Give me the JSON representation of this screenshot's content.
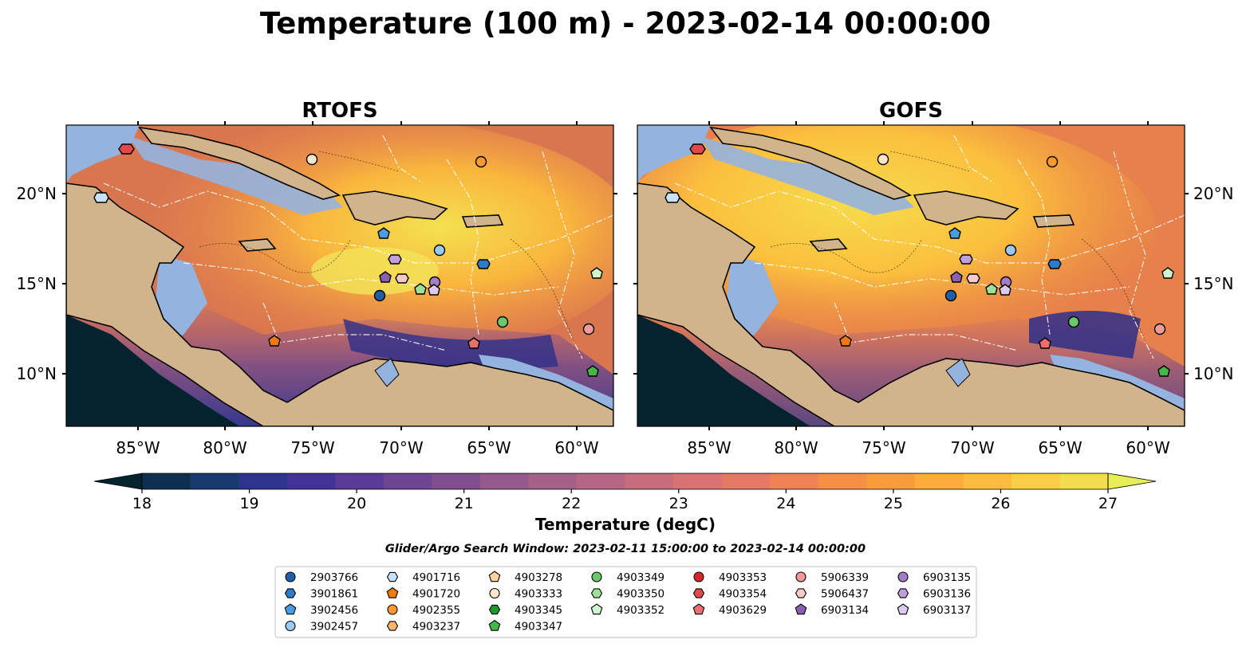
{
  "title": "Temperature (100 m) - 2023-02-14 00:00:00",
  "panels": [
    {
      "title": "RTOFS",
      "x_ticks": [
        "85°W",
        "80°W",
        "75°W",
        "70°W",
        "65°W",
        "60°W"
      ],
      "y_ticks": [
        "20°N",
        "15°N",
        "10°N"
      ]
    },
    {
      "title": "GOFS",
      "x_ticks": [
        "85°W",
        "80°W",
        "75°W",
        "70°W",
        "65°W",
        "60°W"
      ],
      "y_ticks": [
        "20°N",
        "15°N",
        "10°N"
      ]
    }
  ],
  "colorbar": {
    "label": "Temperature (degC)",
    "ticks": [
      "18",
      "19",
      "20",
      "21",
      "22",
      "23",
      "24",
      "25",
      "26",
      "27"
    ],
    "colors": [
      "#04232e",
      "#0d3050",
      "#193a6e",
      "#2c3490",
      "#423399",
      "#5a3b98",
      "#6e4592",
      "#824f8e",
      "#95598b",
      "#a56088",
      "#b66784",
      "#c76d7e",
      "#d87273",
      "#e57965",
      "#ef8355",
      "#f58f46",
      "#f99c3b",
      "#fbac3a",
      "#fbbc3e",
      "#f9cd45",
      "#f2dd4f",
      "#e8ef56"
    ]
  },
  "search_window": "Glider/Argo Search Window: 2023-02-11 15:00:00 to 2023-02-14 00:00:00",
  "legend": {
    "columns": [
      [
        {
          "label": "2903766",
          "shape": "circle",
          "color": "#1f5fa6"
        },
        {
          "label": "3901861",
          "shape": "hexagon",
          "color": "#2b7bc9"
        },
        {
          "label": "3902456",
          "shape": "pentagon",
          "color": "#4a9ee0"
        },
        {
          "label": "3902457",
          "shape": "circle",
          "color": "#9cc9ef"
        }
      ],
      [
        {
          "label": "4901716",
          "shape": "hexagon",
          "color": "#c8e3f8"
        },
        {
          "label": "4901720",
          "shape": "pentagon",
          "color": "#f07a12"
        },
        {
          "label": "4902355",
          "shape": "circle",
          "color": "#f7992e"
        },
        {
          "label": "4903237",
          "shape": "hexagon",
          "color": "#fbb56a"
        }
      ],
      [
        {
          "label": "4903278",
          "shape": "pentagon",
          "color": "#fdd2a0"
        },
        {
          "label": "4903333",
          "shape": "circle",
          "color": "#fde6cc"
        },
        {
          "label": "4903345",
          "shape": "hexagon",
          "color": "#1e9a2b"
        },
        {
          "label": "4903347",
          "shape": "pentagon",
          "color": "#43b847"
        }
      ],
      [
        {
          "label": "4903349",
          "shape": "circle",
          "color": "#6cc96a"
        },
        {
          "label": "4903350",
          "shape": "hexagon",
          "color": "#9ce09a"
        },
        {
          "label": "4903352",
          "shape": "pentagon",
          "color": "#cff5cd"
        }
      ],
      [
        {
          "label": "4903353",
          "shape": "circle",
          "color": "#d62728"
        },
        {
          "label": "4903354",
          "shape": "hexagon",
          "color": "#e04a4a"
        },
        {
          "label": "4903629",
          "shape": "pentagon",
          "color": "#ec6f6f"
        }
      ],
      [
        {
          "label": "5906339",
          "shape": "circle",
          "color": "#f29a9a"
        },
        {
          "label": "5906437",
          "shape": "hexagon",
          "color": "#f8c9c9"
        },
        {
          "label": "6903134",
          "shape": "pentagon",
          "color": "#8a5fb0"
        }
      ],
      [
        {
          "label": "6903135",
          "shape": "circle",
          "color": "#a47cc8"
        },
        {
          "label": "6903136",
          "shape": "hexagon",
          "color": "#bf9fdc"
        },
        {
          "label": "6903137",
          "shape": "pentagon",
          "color": "#dccaef"
        }
      ]
    ]
  },
  "map_colors": {
    "land": "#d2b48c",
    "shallow": "#95b3df",
    "deep_pacific": "#04232e"
  }
}
